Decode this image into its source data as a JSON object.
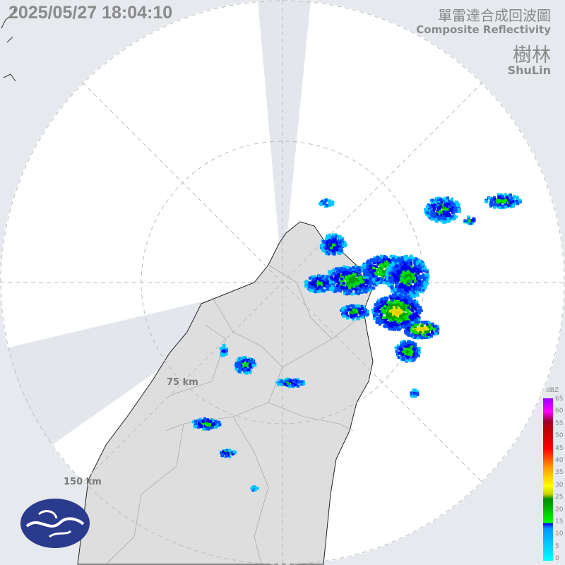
{
  "header": {
    "timestamp": "2025/05/27 18:04:10",
    "title_zh": "單雷達合成回波圖",
    "title_en": "Composite Reflectivity",
    "station_zh": "樹林",
    "station_en": "ShuLin"
  },
  "range_rings": {
    "inner": "75 km",
    "outer": "150 km"
  },
  "legend": {
    "unit": "dBZ",
    "ticks": [
      "65",
      "60",
      "55",
      "50",
      "45",
      "40",
      "35",
      "30",
      "25",
      "20",
      "15",
      "10",
      "5",
      "0"
    ]
  },
  "colors": {
    "background": "#e6e9ed",
    "radar_disc": "#ffffff",
    "land": "#dcdcdc",
    "logo": "#2a3a8c"
  },
  "logo": {
    "icon": "cwa-logo"
  }
}
